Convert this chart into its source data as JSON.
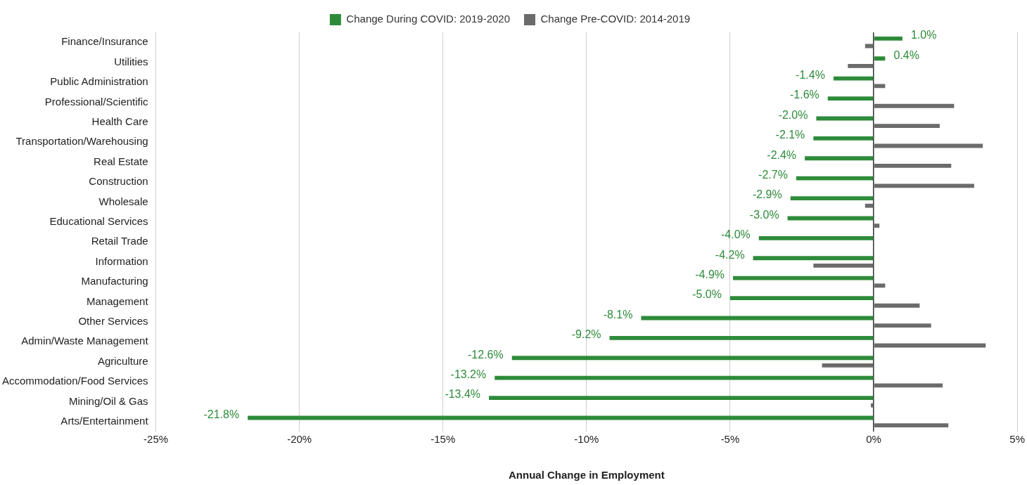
{
  "chart_data": {
    "type": "bar",
    "orientation": "horizontal",
    "xlabel": "Annual Change in Employment",
    "legend": "top",
    "grid": "x",
    "categories": [
      "Finance/Insurance",
      "Utilities",
      "Public Administration",
      "Professional/Scientific",
      "Health Care",
      "Transportation/Warehousing",
      "Real Estate",
      "Construction",
      "Wholesale",
      "Educational Services",
      "Retail Trade",
      "Information",
      "Manufacturing",
      "Management",
      "Other Services",
      "Admin/Waste Management",
      "Agriculture",
      "Accommodation/Food Services",
      "Mining/Oil & Gas",
      "Arts/Entertainment"
    ],
    "series": [
      {
        "name": "Change During COVID: 2019-2020",
        "color": "#2e8b3a",
        "values": [
          1.0,
          0.4,
          -1.4,
          -1.6,
          -2.0,
          -2.1,
          -2.4,
          -2.7,
          -2.9,
          -3.0,
          -4.0,
          -4.2,
          -4.9,
          -5.0,
          -8.1,
          -9.2,
          -12.6,
          -13.2,
          -13.4,
          -21.8
        ],
        "value_labels": [
          "1.0%",
          "0.4%",
          "-1.4%",
          "-1.6%",
          "-2.0%",
          "-2.1%",
          "-2.4%",
          "-2.7%",
          "-2.9%",
          "-3.0%",
          "-4.0%",
          "-4.2%",
          "-4.9%",
          "-5.0%",
          "-8.1%",
          "-9.2%",
          "-12.6%",
          "-13.2%",
          "-13.4%",
          "-21.8%"
        ]
      },
      {
        "name": "Change Pre-COVID: 2014-2019",
        "color": "#6b6b6b",
        "values": [
          -0.3,
          -0.9,
          0.4,
          2.8,
          2.3,
          3.8,
          2.7,
          3.5,
          -0.3,
          0.2,
          0.0,
          -2.1,
          0.4,
          1.6,
          2.0,
          3.9,
          -1.8,
          2.4,
          -0.1,
          2.6
        ]
      }
    ],
    "xlim": [
      -25,
      5
    ],
    "xticks": [
      {
        "value": -25,
        "label": "-25%"
      },
      {
        "value": -20,
        "label": "-20%"
      },
      {
        "value": -15,
        "label": "-15%"
      },
      {
        "value": -10,
        "label": "-10%"
      },
      {
        "value": -5,
        "label": "-5%"
      },
      {
        "value": 0,
        "label": "0%"
      },
      {
        "value": 5,
        "label": "5%"
      }
    ]
  }
}
